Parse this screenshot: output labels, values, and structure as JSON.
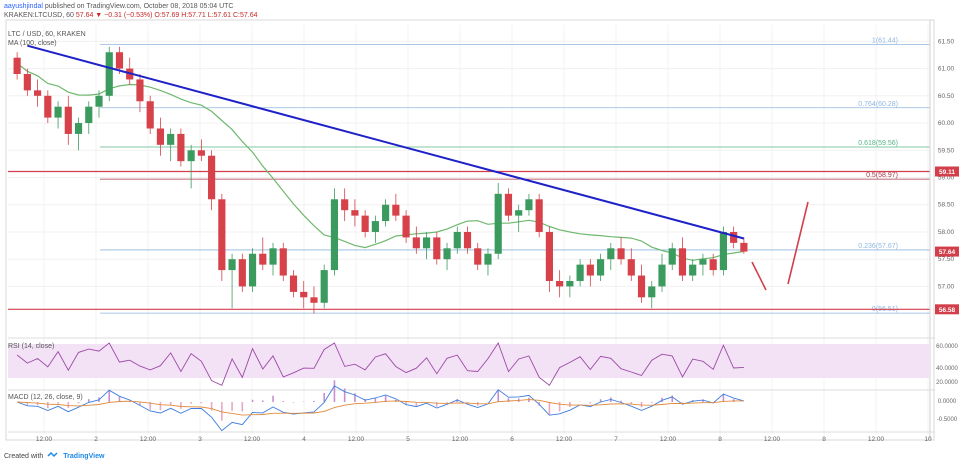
{
  "header": {
    "user": "aayushjindal",
    "published": "published on TradingView.com, October 08, 2018 05:04 UTC",
    "symbol_line": "KRAKEN:LTCUSD, 60",
    "ohlc": "57.64  ▼ −0.31 (−0.53%)  O:57.69  H:57.71  L:57.61  C:57.64"
  },
  "legend": {
    "pair": "LTC / USD, 60, KRAKEN",
    "ma": "MA (100, close)",
    "rsi": "RSI (14, close)",
    "macd": "MACD (12, 26, close, 9)"
  },
  "footer": {
    "created": "Created with",
    "brand": "TradingView"
  },
  "colors": {
    "up": "#3b9b5f",
    "down": "#d6414a",
    "ma": "#6fb86f",
    "trend": "#1e22c8",
    "fib": "#8fb7df",
    "fib_green": "#57b489",
    "sr": "#d23f4a",
    "rsi": "#9b4aa6",
    "rsi_band": "#f3e2f5",
    "macd": "#3d7ee0",
    "signal": "#e08a3d"
  },
  "chart_data": {
    "type": "candlestick",
    "title": "LTC / USD, 60, KRAKEN",
    "ylim": [
      56.2,
      61.8
    ],
    "y_ticks": [
      "61.50",
      "61.00",
      "60.50",
      "60.00",
      "59.50",
      "59.00",
      "58.50",
      "58.00",
      "57.50",
      "57.00"
    ],
    "x_ticks": [
      "12:00",
      "2",
      "12:00",
      "3",
      "12:00",
      "4",
      "12:00",
      "5",
      "12:00",
      "6",
      "12:00",
      "7",
      "12:00",
      "8",
      "12:00",
      "8",
      "12:00",
      "10"
    ],
    "fib_levels": [
      {
        "label": "1(61.44)",
        "value": 61.44
      },
      {
        "label": "0.764(60.28)",
        "value": 60.28
      },
      {
        "label": "0.618(59.56)",
        "value": 59.56
      },
      {
        "label": "0.5(58.97)",
        "value": 58.97
      },
      {
        "label": "0.236(57.67)",
        "value": 57.67
      },
      {
        "label": "0(56.51)",
        "value": 56.51
      }
    ],
    "price_tags": [
      {
        "label": "59.11",
        "value": 59.11
      },
      {
        "label": "57.64",
        "value": 57.64
      },
      {
        "label": "56.58",
        "value": 56.58
      }
    ],
    "trendline": {
      "from": [
        1,
        61.42
      ],
      "to": [
        71,
        57.88
      ]
    },
    "ohlc": [
      [
        61.2,
        61.3,
        60.8,
        60.9
      ],
      [
        60.9,
        61.0,
        60.5,
        60.6
      ],
      [
        60.6,
        60.8,
        60.3,
        60.5
      ],
      [
        60.5,
        60.6,
        60.0,
        60.1
      ],
      [
        60.1,
        60.4,
        59.9,
        60.3
      ],
      [
        60.3,
        60.5,
        59.6,
        59.8
      ],
      [
        59.8,
        60.1,
        59.5,
        60.0
      ],
      [
        60.0,
        60.4,
        59.8,
        60.3
      ],
      [
        60.3,
        60.6,
        60.1,
        60.5
      ],
      [
        60.5,
        61.4,
        60.4,
        61.3
      ],
      [
        61.3,
        61.4,
        60.9,
        61.0
      ],
      [
        61.0,
        61.2,
        60.7,
        60.8
      ],
      [
        60.8,
        60.9,
        60.2,
        60.4
      ],
      [
        60.4,
        60.5,
        59.8,
        59.9
      ],
      [
        59.9,
        60.1,
        59.4,
        59.6
      ],
      [
        59.6,
        59.9,
        59.3,
        59.8
      ],
      [
        59.8,
        59.9,
        59.2,
        59.3
      ],
      [
        59.3,
        59.6,
        58.8,
        59.5
      ],
      [
        59.5,
        59.7,
        59.3,
        59.4
      ],
      [
        59.4,
        59.5,
        58.4,
        58.6
      ],
      [
        58.6,
        58.7,
        57.1,
        57.3
      ],
      [
        57.3,
        57.6,
        56.6,
        57.5
      ],
      [
        57.5,
        57.6,
        56.9,
        57.0
      ],
      [
        57.0,
        57.7,
        56.9,
        57.6
      ],
      [
        57.6,
        57.9,
        57.3,
        57.4
      ],
      [
        57.4,
        57.8,
        57.2,
        57.7
      ],
      [
        57.7,
        57.8,
        57.1,
        57.2
      ],
      [
        57.2,
        57.3,
        56.8,
        56.9
      ],
      [
        56.9,
        57.1,
        56.6,
        56.8
      ],
      [
        56.8,
        57.0,
        56.5,
        56.7
      ],
      [
        56.7,
        57.4,
        56.6,
        57.3
      ],
      [
        57.3,
        58.8,
        57.2,
        58.6
      ],
      [
        58.6,
        58.8,
        58.2,
        58.4
      ],
      [
        58.4,
        58.6,
        58.1,
        58.3
      ],
      [
        58.3,
        58.4,
        57.9,
        58.0
      ],
      [
        58.0,
        58.3,
        57.8,
        58.2
      ],
      [
        58.2,
        58.6,
        58.1,
        58.5
      ],
      [
        58.5,
        58.7,
        58.2,
        58.3
      ],
      [
        58.3,
        58.4,
        57.8,
        57.9
      ],
      [
        57.9,
        58.1,
        57.6,
        57.7
      ],
      [
        57.7,
        58.0,
        57.5,
        57.9
      ],
      [
        57.9,
        58.0,
        57.4,
        57.5
      ],
      [
        57.5,
        57.8,
        57.3,
        57.7
      ],
      [
        57.7,
        58.1,
        57.6,
        58.0
      ],
      [
        58.0,
        58.1,
        57.6,
        57.7
      ],
      [
        57.7,
        57.8,
        57.3,
        57.4
      ],
      [
        57.4,
        57.7,
        57.2,
        57.6
      ],
      [
        57.6,
        58.9,
        57.5,
        58.7
      ],
      [
        58.7,
        58.8,
        58.2,
        58.3
      ],
      [
        58.3,
        58.5,
        58.0,
        58.4
      ],
      [
        58.4,
        58.7,
        58.3,
        58.6
      ],
      [
        58.6,
        58.7,
        57.9,
        58.0
      ],
      [
        58.0,
        58.1,
        56.9,
        57.1
      ],
      [
        57.1,
        57.3,
        56.8,
        57.0
      ],
      [
        57.0,
        57.2,
        56.8,
        57.1
      ],
      [
        57.1,
        57.5,
        57.0,
        57.4
      ],
      [
        57.4,
        57.5,
        57.0,
        57.2
      ],
      [
        57.2,
        57.6,
        57.1,
        57.5
      ],
      [
        57.5,
        57.8,
        57.3,
        57.7
      ],
      [
        57.7,
        57.9,
        57.4,
        57.5
      ],
      [
        57.5,
        57.7,
        57.1,
        57.2
      ],
      [
        57.2,
        57.4,
        56.7,
        56.8
      ],
      [
        56.8,
        57.1,
        56.6,
        57.0
      ],
      [
        57.0,
        57.6,
        56.9,
        57.4
      ],
      [
        57.4,
        57.8,
        57.3,
        57.7
      ],
      [
        57.7,
        57.9,
        57.1,
        57.2
      ],
      [
        57.2,
        57.5,
        57.1,
        57.4
      ],
      [
        57.4,
        57.6,
        57.2,
        57.5
      ],
      [
        57.5,
        57.6,
        57.2,
        57.3
      ],
      [
        57.3,
        58.1,
        57.2,
        58.0
      ],
      [
        58.0,
        58.1,
        57.7,
        57.8
      ],
      [
        57.8,
        57.9,
        57.6,
        57.64
      ]
    ]
  }
}
